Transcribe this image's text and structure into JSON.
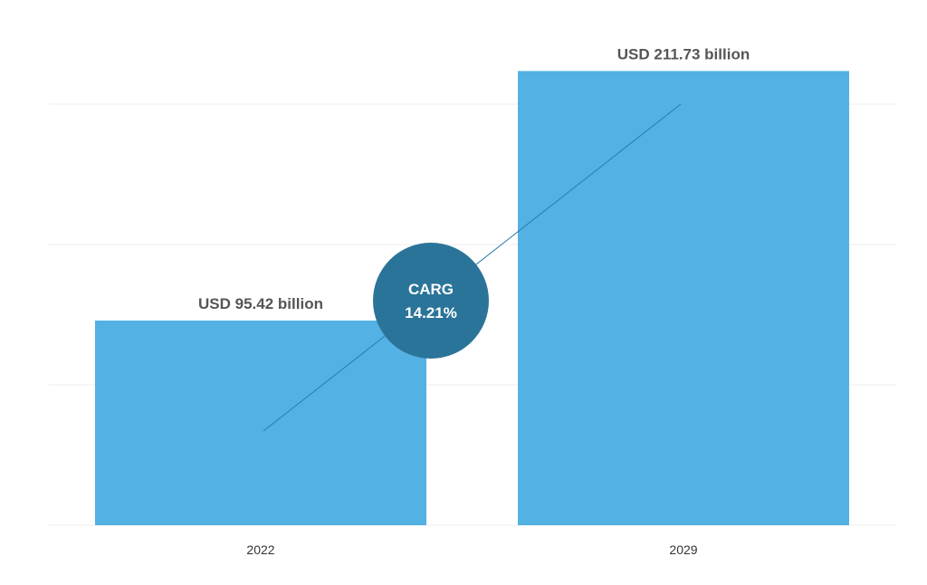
{
  "chart_data": {
    "type": "bar",
    "categories": [
      "2022",
      "2029"
    ],
    "values": [
      95.42,
      211.73
    ],
    "data_labels": [
      "USD 95.42 billion",
      "USD 211.73 billion"
    ],
    "ylim": [
      0,
      225
    ],
    "grid": true,
    "colors": {
      "bar": "#53b1e3",
      "badge": "#2b7499",
      "trend_line": "#2d7bab",
      "grid": "#ececec"
    },
    "annotation": {
      "line1": "CARG",
      "line2": "14.21%"
    }
  }
}
